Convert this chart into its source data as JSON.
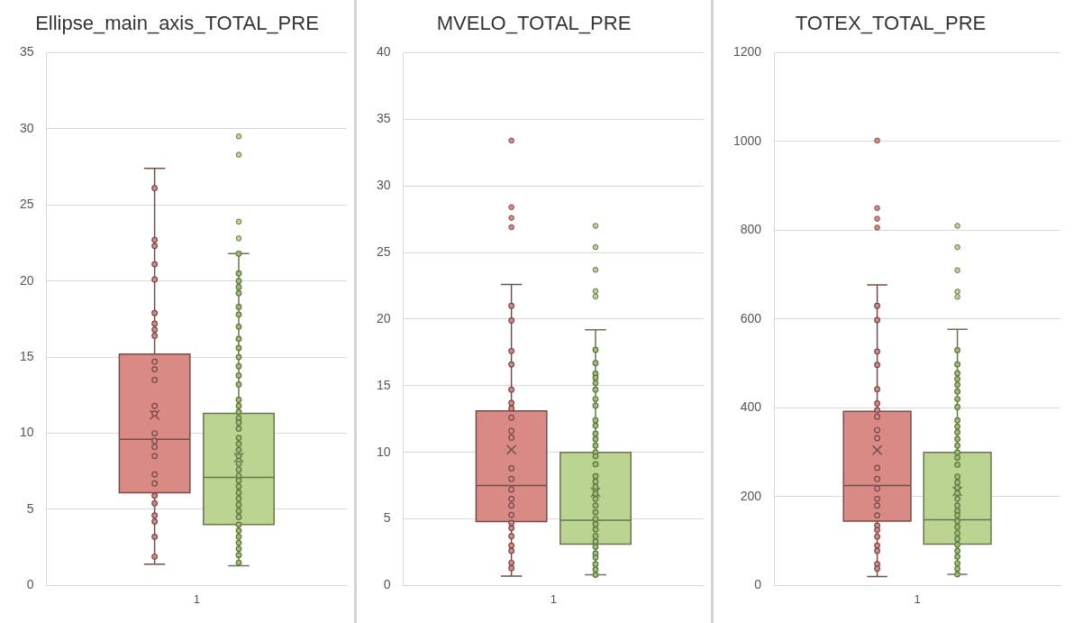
{
  "chart_data": [
    {
      "type": "box",
      "title": "Ellipse_main_axis_TOTAL_PRE",
      "categories": [
        "1"
      ],
      "ylim": [
        0,
        35
      ],
      "yticks": [
        0,
        5,
        10,
        15,
        20,
        25,
        30,
        35
      ],
      "grid": "y",
      "legend": false,
      "marker": "circle",
      "series": [
        {
          "type": "box",
          "color": "#d98a85",
          "boxes": [
            {
              "low": 1.4,
              "q1": 6.1,
              "median": 9.6,
              "q3": 15.2,
              "high": 27.4,
              "mean": 11.2
            }
          ]
        },
        {
          "type": "box",
          "color": "#bcd492",
          "boxes": [
            {
              "low": 1.3,
              "q1": 4.0,
              "median": 7.1,
              "q3": 11.3,
              "high": 21.8,
              "mean": 8.4,
              "outliers": [
                22.8,
                23.9,
                28.3,
                29.5
              ]
            }
          ]
        },
        {
          "type": "scatter",
          "color": "#8b3f3b",
          "x": [
            "1",
            "1",
            "1",
            "1",
            "1",
            "1",
            "1",
            "1",
            "1",
            "1",
            "1",
            "1",
            "1",
            "1",
            "1",
            "1",
            "1",
            "1",
            "1",
            "1",
            "1",
            "1",
            "1",
            "1",
            "1",
            "1"
          ],
          "values": [
            26.1,
            22.7,
            22.3,
            21.1,
            20.1,
            17.9,
            17.2,
            16.8,
            16.4,
            14.7,
            14.2,
            13.5,
            11.8,
            11.3,
            10.0,
            9.5,
            9.1,
            8.5,
            7.3,
            6.7,
            5.9,
            5.4,
            4.6,
            4.2,
            3.2,
            1.9
          ]
        },
        {
          "type": "scatter",
          "color": "#5a7a2e",
          "x": [
            "1",
            "1",
            "1",
            "1",
            "1",
            "1",
            "1",
            "1",
            "1",
            "1",
            "1",
            "1",
            "1",
            "1",
            "1",
            "1",
            "1",
            "1",
            "1",
            "1",
            "1",
            "1",
            "1",
            "1",
            "1",
            "1",
            "1",
            "1",
            "1",
            "1",
            "1",
            "1",
            "1",
            "1",
            "1",
            "1",
            "1",
            "1",
            "1",
            "1",
            "1"
          ],
          "values": [
            21.8,
            20.5,
            20.0,
            19.6,
            19.2,
            18.3,
            17.8,
            17.0,
            16.2,
            15.6,
            15.0,
            14.4,
            13.8,
            13.2,
            12.2,
            11.8,
            11.4,
            11.0,
            10.7,
            10.3,
            9.7,
            9.3,
            8.9,
            8.5,
            8.0,
            7.6,
            7.2,
            6.9,
            6.5,
            6.1,
            5.7,
            5.3,
            4.9,
            4.5,
            4.0,
            3.6,
            3.2,
            2.8,
            2.4,
            2.0,
            1.5
          ]
        }
      ]
    },
    {
      "type": "box",
      "title": "MVELO_TOTAL_PRE",
      "categories": [
        "1"
      ],
      "ylim": [
        0,
        40
      ],
      "yticks": [
        0,
        5,
        10,
        15,
        20,
        25,
        30,
        35,
        40
      ],
      "grid": "y",
      "legend": false,
      "marker": "circle",
      "series": [
        {
          "type": "box",
          "color": "#d98a85",
          "boxes": [
            {
              "low": 0.7,
              "q1": 4.8,
              "median": 7.5,
              "q3": 13.1,
              "high": 22.6,
              "mean": 10.2,
              "outliers": [
                26.9,
                27.6,
                28.4,
                33.4
              ]
            }
          ]
        },
        {
          "type": "box",
          "color": "#bcd492",
          "boxes": [
            {
              "low": 0.8,
              "q1": 3.1,
              "median": 4.9,
              "q3": 10.0,
              "high": 19.2,
              "mean": 7.0,
              "outliers": [
                21.7,
                22.1,
                23.7,
                25.4,
                27.0
              ]
            }
          ]
        },
        {
          "type": "scatter",
          "color": "#8b3f3b",
          "x": [
            "1",
            "1",
            "1",
            "1",
            "1",
            "1",
            "1",
            "1",
            "1",
            "1",
            "1",
            "1",
            "1",
            "1",
            "1",
            "1",
            "1",
            "1",
            "1",
            "1",
            "1",
            "1",
            "1"
          ],
          "values": [
            21.0,
            19.9,
            17.6,
            16.6,
            14.7,
            13.7,
            13.3,
            12.6,
            11.6,
            11.1,
            8.8,
            8.0,
            7.2,
            6.5,
            6.0,
            5.3,
            4.7,
            4.3,
            3.7,
            3.0,
            2.6,
            1.7,
            1.3
          ]
        },
        {
          "type": "scatter",
          "color": "#5a7a2e",
          "x": [
            "1",
            "1",
            "1",
            "1",
            "1",
            "1",
            "1",
            "1",
            "1",
            "1",
            "1",
            "1",
            "1",
            "1",
            "1",
            "1",
            "1",
            "1",
            "1",
            "1",
            "1",
            "1",
            "1",
            "1",
            "1",
            "1",
            "1",
            "1",
            "1",
            "1",
            "1",
            "1",
            "1",
            "1"
          ],
          "values": [
            17.7,
            16.7,
            15.9,
            15.6,
            15.2,
            14.7,
            14.0,
            13.5,
            12.4,
            12.0,
            11.4,
            11.0,
            10.5,
            10.0,
            9.7,
            9.1,
            8.2,
            7.8,
            7.4,
            6.9,
            6.5,
            6.0,
            5.5,
            5.0,
            4.6,
            4.2,
            3.7,
            3.3,
            2.9,
            2.4,
            2.1,
            1.6,
            1.2,
            0.8
          ]
        }
      ]
    },
    {
      "type": "box",
      "title": "TOTEX_TOTAL_PRE",
      "categories": [
        "1"
      ],
      "ylim": [
        0,
        1200
      ],
      "yticks": [
        0,
        200,
        400,
        600,
        800,
        1000,
        1200
      ],
      "grid": "y",
      "legend": false,
      "marker": "circle",
      "series": [
        {
          "type": "box",
          "color": "#d98a85",
          "boxes": [
            {
              "low": 20,
              "q1": 145,
              "median": 225,
              "q3": 392,
              "high": 677,
              "mean": 305,
              "outliers": [
                806,
                826,
                850,
                1002
              ]
            }
          ]
        },
        {
          "type": "box",
          "color": "#bcd492",
          "boxes": [
            {
              "low": 25,
              "q1": 93,
              "median": 148,
              "q3": 300,
              "high": 577,
              "mean": 212,
              "outliers": [
                650,
                662,
                710,
                762,
                810
              ]
            }
          ]
        },
        {
          "type": "scatter",
          "color": "#8b3f3b",
          "x": [
            "1",
            "1",
            "1",
            "1",
            "1",
            "1",
            "1",
            "1",
            "1",
            "1",
            "1",
            "1",
            "1",
            "1",
            "1",
            "1",
            "1",
            "1",
            "1",
            "1",
            "1",
            "1",
            "1"
          ],
          "values": [
            630,
            598,
            527,
            497,
            442,
            410,
            395,
            380,
            350,
            332,
            265,
            240,
            218,
            195,
            180,
            158,
            135,
            125,
            110,
            90,
            78,
            48,
            38
          ]
        },
        {
          "type": "scatter",
          "color": "#5a7a2e",
          "x": [
            "1",
            "1",
            "1",
            "1",
            "1",
            "1",
            "1",
            "1",
            "1",
            "1",
            "1",
            "1",
            "1",
            "1",
            "1",
            "1",
            "1",
            "1",
            "1",
            "1",
            "1",
            "1",
            "1",
            "1",
            "1",
            "1",
            "1",
            "1",
            "1",
            "1",
            "1",
            "1",
            "1",
            "1"
          ],
          "values": [
            530,
            498,
            478,
            465,
            452,
            437,
            420,
            402,
            372,
            358,
            345,
            330,
            315,
            300,
            288,
            272,
            245,
            232,
            220,
            208,
            195,
            180,
            168,
            158,
            145,
            132,
            118,
            105,
            92,
            78,
            65,
            50,
            38,
            25
          ]
        }
      ]
    }
  ]
}
